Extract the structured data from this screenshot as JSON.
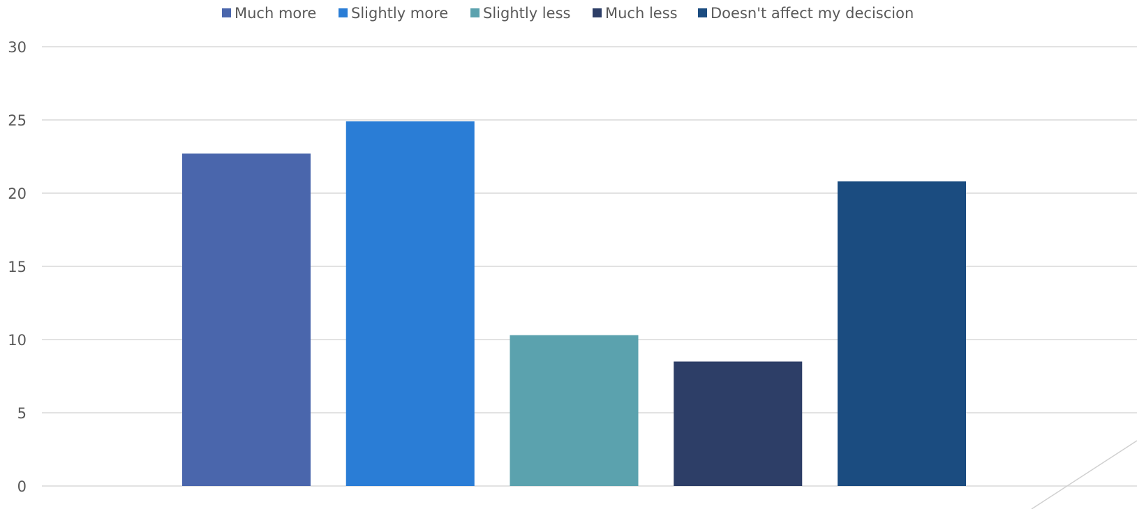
{
  "chart_data": {
    "type": "bar",
    "title": "",
    "xlabel": "",
    "ylabel": "",
    "ylim": [
      0,
      30
    ],
    "yticks": [
      "0",
      "5",
      "10",
      "15",
      "20",
      "25",
      "30"
    ],
    "grid": true,
    "legend_position": "top-center",
    "series": [
      {
        "name": "Much more",
        "value": 22.7,
        "color": "#4A66AC"
      },
      {
        "name": "Slightly more",
        "value": 24.9,
        "color": "#2A7DD6"
      },
      {
        "name": "Slightly less",
        "value": 10.3,
        "color": "#5BA2AE"
      },
      {
        "name": "Much less",
        "value": 8.5,
        "color": "#2D3E67"
      },
      {
        "name": "Doesn't affect my deciscion",
        "value": 20.8,
        "color": "#1B4C80"
      }
    ]
  }
}
